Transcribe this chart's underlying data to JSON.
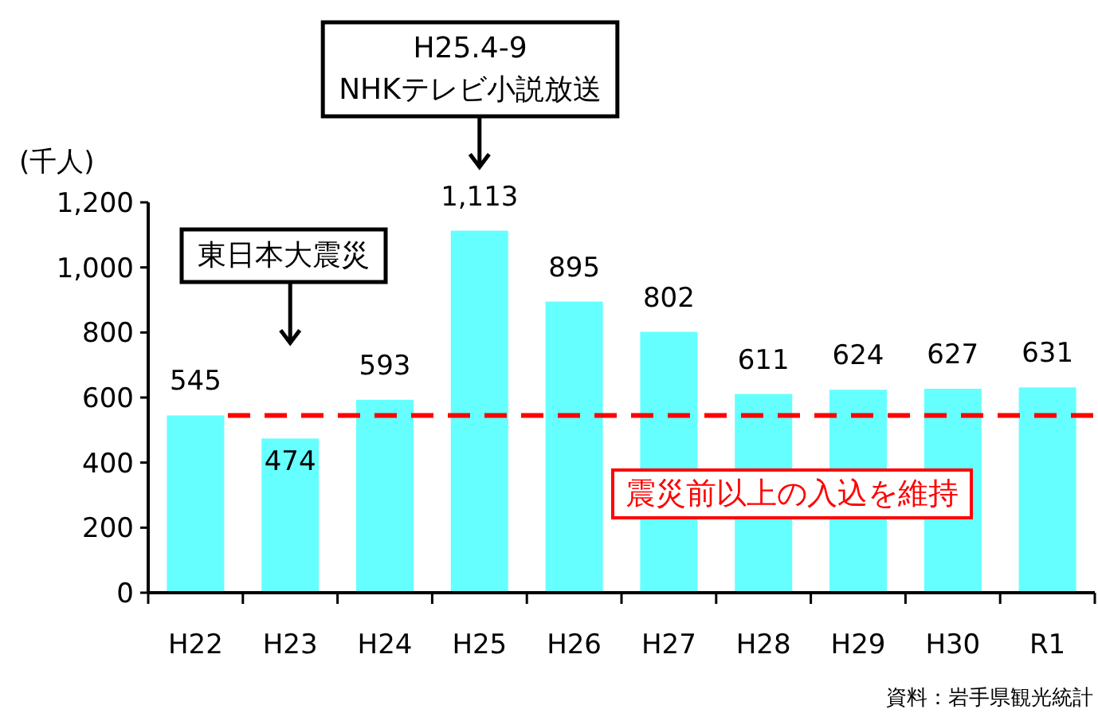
{
  "chart_data": {
    "type": "bar",
    "ylabel": "(千人)",
    "categories": [
      "H22",
      "H23",
      "H24",
      "H25",
      "H26",
      "H27",
      "H28",
      "H29",
      "H30",
      "R1"
    ],
    "values": [
      545,
      474,
      593,
      1113,
      895,
      802,
      611,
      624,
      627,
      631
    ],
    "value_labels": [
      "545",
      "474",
      "593",
      "1,113",
      "895",
      "802",
      "611",
      "624",
      "627",
      "631"
    ],
    "color": "#66ffff",
    "ylim": [
      0,
      1200
    ],
    "yticks": [
      0,
      200,
      400,
      600,
      800,
      {
        "value": 1000,
        "label": "1,000"
      },
      {
        "value": 1200,
        "label": "1,200"
      }
    ],
    "ref_lines": [
      {
        "axis": "y",
        "value": 545,
        "label": "震災前以上の入込を維持",
        "color": "#ff0000",
        "line_style": "dashed"
      }
    ],
    "annotations": [
      "東日本大震災",
      "H25.4-9\nNHKテレビ小説放送",
      "資料：岩手県観光統計"
    ]
  }
}
